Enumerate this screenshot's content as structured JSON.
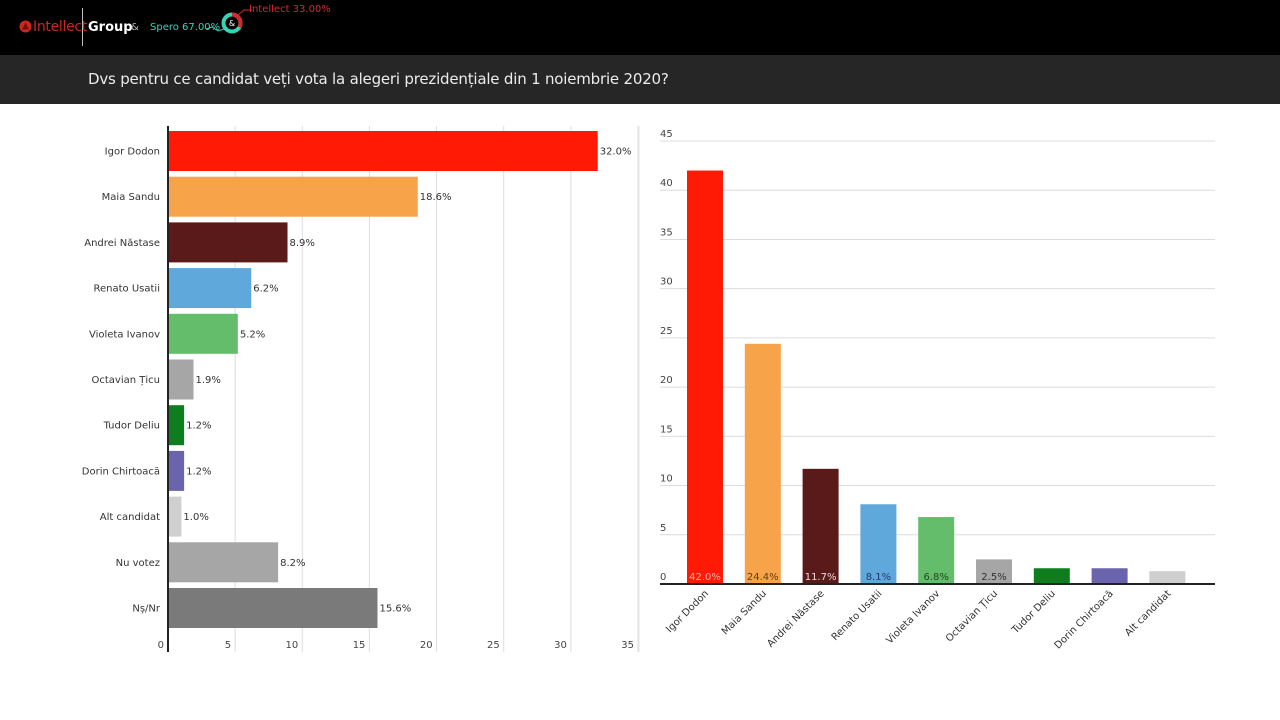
{
  "header": {
    "brand_left": "Intellect",
    "brand_right": "Group",
    "ampersand": "&",
    "spero_label": "Spero 67.00%",
    "intellect_label": "Intellect 33.00%",
    "donut_center": "&",
    "donut_share": {
      "spero": 67.0,
      "intellect": 33.0
    },
    "colors": {
      "spero": "#36d3b9",
      "intellect": "#d22a2a"
    }
  },
  "title": "Dvs pentru ce candidat veți vota la alegeri prezidențiale din 1 noiembrie 2020?",
  "chart_data": [
    {
      "type": "bar",
      "orientation": "horizontal",
      "title": "",
      "xlabel": "",
      "ylabel": "",
      "xlim": [
        0,
        35
      ],
      "xticks": [
        "0",
        "5",
        "10",
        "15",
        "20",
        "25",
        "30",
        "35"
      ],
      "grid": true,
      "categories": [
        "Igor Dodon",
        "Maia Sandu",
        "Andrei Năstase",
        "Renato Usatii",
        "Violeta Ivanov",
        "Octavian Țicu",
        "Tudor Deliu",
        "Dorin Chirtoacă",
        "Alt candidat",
        "Nu votez",
        "Nș/Nr"
      ],
      "values": [
        32.0,
        18.6,
        8.9,
        6.2,
        5.2,
        1.9,
        1.2,
        1.2,
        1.0,
        8.2,
        15.6
      ],
      "data_labels": [
        "32.0%",
        "18.6%",
        "8.9%",
        "6.2%",
        "5.2%",
        "1.9%",
        "1.2%",
        "1.2%",
        "1.0%",
        "8.2%",
        "15.6%"
      ],
      "colors": [
        "#ff1a05",
        "#f6a34a",
        "#5a1a1a",
        "#5ea8dc",
        "#63bd6a",
        "#a6a6a6",
        "#0d7d1e",
        "#6a64ad",
        "#cfcfcf",
        "#a6a6a6",
        "#7a7a7a"
      ]
    },
    {
      "type": "bar",
      "orientation": "vertical",
      "title": "",
      "xlabel": "",
      "ylabel": "",
      "ylim": [
        0,
        45
      ],
      "yticks": [
        "0",
        "5",
        "10",
        "15",
        "20",
        "25",
        "30",
        "35",
        "40",
        "45"
      ],
      "grid": true,
      "categories": [
        "Igor Dodon",
        "Maia Sandu",
        "Andrei Năstase",
        "Renato Usatii",
        "Violeta Ivanov",
        "Octavian Țicu",
        "Tudor Deliu",
        "Dorin Chirtoacă",
        "Alt candidat"
      ],
      "values": [
        42.0,
        24.4,
        11.7,
        8.1,
        6.8,
        2.5,
        1.6,
        1.6,
        1.3
      ],
      "data_labels": [
        "42.0%",
        "24.4%",
        "11.7%",
        "8.1%",
        "6.8%",
        "2.5%",
        "",
        "",
        ""
      ],
      "label_colors": [
        "#f7b3a8",
        "#6b3a10",
        "#f0d6d6",
        "#1c3f66",
        "#1f4a22",
        "#333333",
        "",
        "",
        ""
      ],
      "colors": [
        "#ff1a05",
        "#f6a34a",
        "#5a1a1a",
        "#5ea8dc",
        "#63bd6a",
        "#a6a6a6",
        "#0d7d1e",
        "#6a64ad",
        "#cfcfcf"
      ]
    }
  ]
}
